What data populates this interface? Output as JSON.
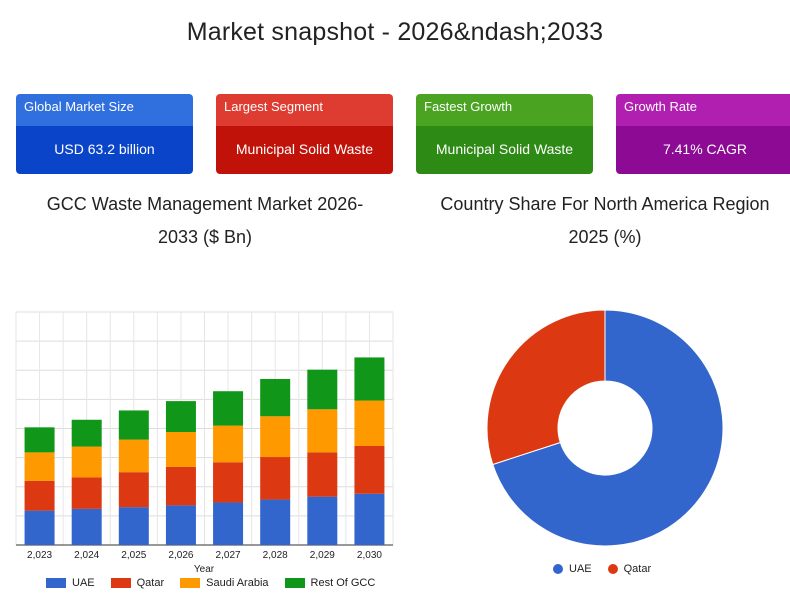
{
  "page": {
    "title": "Market snapshot - 2026&ndash;2033"
  },
  "cards": [
    {
      "label": "Global Market Size",
      "value": "USD 63.2 billion",
      "header_color": "#2f6fde",
      "body_color": "#0a45c9"
    },
    {
      "label": "Largest Segment",
      "value": "Municipal Solid Waste",
      "header_color": "#de3c30",
      "body_color": "#c1120a"
    },
    {
      "label": "Fastest Growth",
      "value": "Municipal Solid Waste",
      "header_color": "#4aa321",
      "body_color": "#2d8a14"
    },
    {
      "label": "Growth Rate",
      "value": "7.41% CAGR",
      "header_color": "#b01fb0",
      "body_color": "#8c0a94"
    }
  ],
  "chart_data": [
    {
      "type": "bar",
      "stacked": true,
      "title_line1": "GCC Waste Management Market 2026-",
      "title_line2": "2033 ($ Bn)",
      "xlabel": "Year",
      "ylabel": "",
      "ylim": [
        0,
        40
      ],
      "yticks": [
        0,
        5,
        10,
        15,
        20,
        25,
        30,
        35,
        40
      ],
      "show_y_tick_labels": false,
      "grid": true,
      "legend_position": "bottom",
      "categories": [
        "2,023",
        "2,024",
        "2,025",
        "2,026",
        "2,027",
        "2,028",
        "2,029",
        "2,030"
      ],
      "series": [
        {
          "name": "UAE",
          "color": "#3366cc",
          "values": [
            5.9,
            6.2,
            6.5,
            6.8,
            7.3,
            7.8,
            8.3,
            8.8
          ]
        },
        {
          "name": "Qatar",
          "color": "#dc3912",
          "values": [
            5.1,
            5.4,
            6.0,
            6.6,
            6.9,
            7.3,
            7.6,
            8.2
          ]
        },
        {
          "name": "Saudi Arabia",
          "color": "#ff9900",
          "values": [
            4.9,
            5.3,
            5.6,
            6.0,
            6.3,
            7.0,
            7.4,
            7.8
          ]
        },
        {
          "name": "Rest Of GCC",
          "color": "#109618",
          "values": [
            4.3,
            4.6,
            5.0,
            5.3,
            5.9,
            6.4,
            6.8,
            7.4
          ]
        }
      ]
    },
    {
      "type": "pie",
      "donut": true,
      "title_line1": "Country Share For North America Region",
      "title_line2": "2025 (%)",
      "legend_position": "bottom",
      "slices": [
        {
          "name": "UAE",
          "value": 70,
          "color": "#3366cc"
        },
        {
          "name": "Qatar",
          "value": 30,
          "color": "#dc3912"
        }
      ]
    }
  ]
}
